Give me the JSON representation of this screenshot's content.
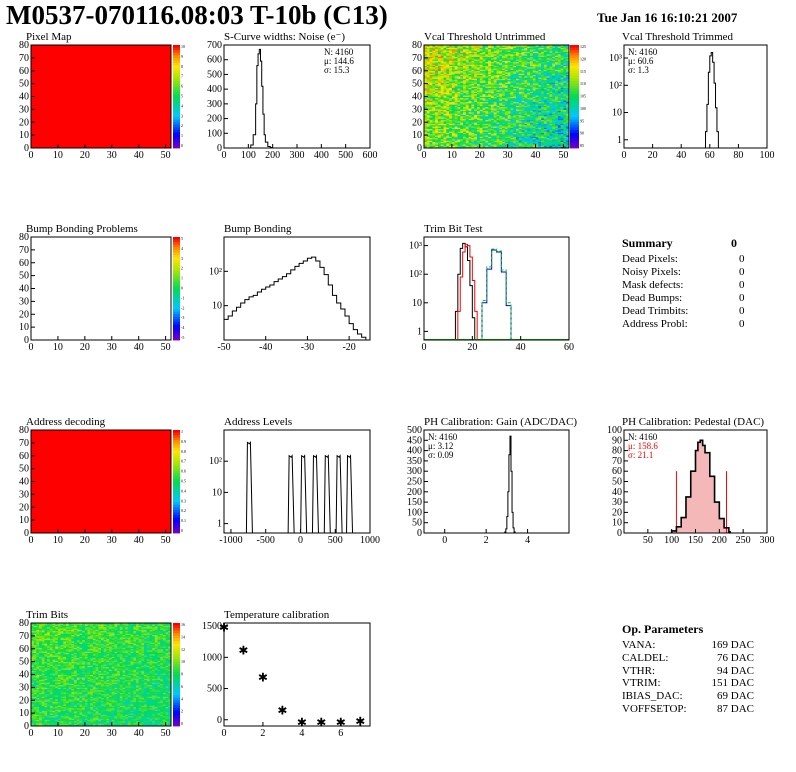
{
  "header": {
    "title": "M0537-070116.08:03 T-10b (C13)",
    "date": "Tue Jan 16 16:10:21 2007"
  },
  "summary": {
    "title": "Summary",
    "total": "0",
    "rows": [
      {
        "label": "Dead Pixels:",
        "value": "0"
      },
      {
        "label": "Noisy Pixels:",
        "value": "0"
      },
      {
        "label": "Mask defects:",
        "value": "0"
      },
      {
        "label": "Dead Bumps:",
        "value": "0"
      },
      {
        "label": "Dead Trimbits:",
        "value": "0"
      },
      {
        "label": "Address Probl:",
        "value": "0"
      }
    ]
  },
  "op_params": {
    "title": "Op. Parameters",
    "rows": [
      {
        "label": "VANA:",
        "value": "169 DAC"
      },
      {
        "label": "CALDEL:",
        "value": "76 DAC"
      },
      {
        "label": "VTHR:",
        "value": "94 DAC"
      },
      {
        "label": "VTRIM:",
        "value": "151 DAC"
      },
      {
        "label": "IBIAS_DAC:",
        "value": "69 DAC"
      },
      {
        "label": "VOFFSETOP:",
        "value": "87 DAC"
      }
    ]
  },
  "chart_data": [
    {
      "id": "pixel_map",
      "type": "heatmap",
      "title": "Pixel Map",
      "xlim": [
        0,
        52
      ],
      "ylim": [
        0,
        80
      ],
      "xticks": [
        0,
        10,
        20,
        30,
        40,
        50
      ],
      "yticks": [
        0,
        10,
        20,
        30,
        40,
        50,
        60,
        70,
        80
      ],
      "fill": "uniform",
      "fill_color": "#ff0000",
      "zticks": [
        "10",
        "9",
        "8",
        "7",
        "6",
        "5",
        "4",
        "3",
        "2",
        "1",
        "0"
      ]
    },
    {
      "id": "scurve_widths",
      "type": "bar",
      "title": "S-Curve widths: Noise (e⁻)",
      "xlim": [
        0,
        600
      ],
      "ylim": [
        0,
        700
      ],
      "xticks": [
        0,
        100,
        200,
        300,
        400,
        500,
        600
      ],
      "yticks": [
        0,
        100,
        200,
        300,
        400,
        500,
        600,
        700
      ],
      "stats": [
        "N: 4160",
        "μ: 144.6",
        "σ: 15.3"
      ],
      "x": [
        100,
        110,
        120,
        130,
        135,
        140,
        145,
        150,
        155,
        160,
        165,
        170,
        180,
        190,
        200
      ],
      "values": [
        0,
        20,
        90,
        300,
        560,
        640,
        670,
        590,
        420,
        230,
        90,
        40,
        10,
        3,
        0
      ]
    },
    {
      "id": "vcal_untrimmed",
      "type": "heatmap",
      "title": "Vcal Threshold Untrimmed",
      "xlim": [
        0,
        52
      ],
      "ylim": [
        0,
        80
      ],
      "xticks": [
        0,
        10,
        20,
        30,
        40,
        50
      ],
      "yticks": [
        0,
        10,
        20,
        30,
        40,
        50,
        60,
        70,
        80
      ],
      "fill": "gradient_random",
      "zticks": [
        "125",
        "120",
        "115",
        "110",
        "105",
        "100",
        "95",
        "90",
        "85"
      ]
    },
    {
      "id": "vcal_trimmed",
      "type": "bar",
      "title": "Vcal Threshold Trimmed",
      "xlim": [
        0,
        100
      ],
      "log_y": true,
      "ylim": [
        0.5,
        3000
      ],
      "xticks": [
        0,
        20,
        40,
        60,
        80,
        100
      ],
      "yticks": [
        {
          "v": 1,
          "t": "1"
        },
        {
          "v": 10,
          "t": "10"
        },
        {
          "v": 100,
          "t": "10²"
        },
        {
          "v": 1000,
          "t": "10³"
        }
      ],
      "stats": [
        "N: 4160",
        "μ: 60.6",
        "σ: 1.3"
      ],
      "x": [
        56,
        57,
        58,
        59,
        60,
        61,
        62,
        63,
        64,
        65,
        66
      ],
      "values": [
        0,
        2,
        20,
        300,
        1200,
        1600,
        700,
        120,
        15,
        2,
        0
      ]
    },
    {
      "id": "bump_problems",
      "type": "heatmap",
      "title": "Bump Bonding Problems",
      "xlim": [
        0,
        52
      ],
      "ylim": [
        0,
        80
      ],
      "xticks": [
        0,
        10,
        20,
        30,
        40,
        50
      ],
      "yticks": [
        0,
        10,
        20,
        30,
        40,
        50,
        60,
        70,
        80
      ],
      "fill": "empty",
      "zticks": [
        "5",
        "4",
        "3",
        "2",
        "1",
        "0",
        "-1",
        "-2",
        "-3",
        "-4",
        "-5"
      ]
    },
    {
      "id": "bump_bonding",
      "type": "bar",
      "title": "Bump Bonding",
      "xlim": [
        -50,
        -15
      ],
      "log_y": true,
      "ylim": [
        1,
        1000
      ],
      "xticks": [
        -50,
        -40,
        -30,
        -20
      ],
      "yticks": [
        {
          "v": 10,
          "t": "10"
        },
        {
          "v": 100,
          "t": "10²"
        }
      ],
      "x": [
        -50,
        -49,
        -48,
        -47,
        -46,
        -45,
        -44,
        -43,
        -42,
        -41,
        -40,
        -39,
        -38,
        -37,
        -36,
        -35,
        -34,
        -33,
        -32,
        -31,
        -30,
        -29,
        -28,
        -27,
        -26,
        -25,
        -24,
        -23,
        -22,
        -21,
        -20,
        -19,
        -18,
        -17,
        -16
      ],
      "values": [
        4,
        5,
        7,
        9,
        12,
        15,
        18,
        20,
        25,
        30,
        35,
        40,
        50,
        60,
        70,
        85,
        110,
        140,
        170,
        200,
        240,
        260,
        200,
        130,
        80,
        40,
        20,
        12,
        8,
        5,
        3,
        2,
        1.5,
        1.2,
        1
      ]
    },
    {
      "id": "trim_bit_test",
      "type": "line",
      "title": "Trim Bit Test",
      "xlim": [
        0,
        60
      ],
      "log_y": true,
      "ylim": [
        0.5,
        2000
      ],
      "xticks": [
        0,
        20,
        40,
        60
      ],
      "yticks": [
        {
          "v": 1,
          "t": "1"
        },
        {
          "v": 10,
          "t": "10"
        },
        {
          "v": 100,
          "t": "10²"
        },
        {
          "v": 1000,
          "t": "10³"
        }
      ],
      "series": [
        {
          "color": "#000000",
          "x": [
            12,
            13,
            14,
            15,
            16,
            17,
            18,
            19,
            20,
            21
          ],
          "values": [
            0.5,
            5,
            100,
            800,
            1200,
            900,
            300,
            40,
            3,
            0.5
          ]
        },
        {
          "color": "#ff0000",
          "x": [
            13,
            14,
            15,
            16,
            17,
            18,
            19,
            20,
            21,
            22
          ],
          "values": [
            0.5,
            5,
            80,
            600,
            1100,
            1000,
            400,
            60,
            5,
            0.5
          ]
        },
        {
          "color": "#0000ff",
          "x": [
            22,
            24,
            26,
            28,
            30,
            32,
            34,
            36
          ],
          "values": [
            0.5,
            10,
            150,
            700,
            600,
            120,
            8,
            0.5
          ]
        },
        {
          "color": "#00cc00",
          "dashed": true,
          "x": [
            22,
            24,
            26,
            28,
            30,
            32,
            34,
            36
          ],
          "values": [
            0.5,
            12,
            180,
            750,
            650,
            140,
            10,
            0.5
          ]
        }
      ]
    },
    {
      "id": "address_decoding",
      "type": "heatmap",
      "title": "Address decoding",
      "xlim": [
        0,
        52
      ],
      "ylim": [
        0,
        80
      ],
      "xticks": [
        0,
        10,
        20,
        30,
        40,
        50
      ],
      "yticks": [
        0,
        10,
        20,
        30,
        40,
        50,
        60,
        70,
        80
      ],
      "fill": "uniform",
      "fill_color": "#ff0000",
      "zticks": [
        "1",
        "0.9",
        "0.8",
        "0.7",
        "0.6",
        "0.5",
        "0.4",
        "0.3",
        "0.2",
        "0.1",
        "0"
      ]
    },
    {
      "id": "address_levels",
      "type": "bar",
      "title": "Address Levels",
      "xlim": [
        -1100,
        1000
      ],
      "log_y": true,
      "ylim": [
        0.5,
        1000
      ],
      "xticks": [
        -1000,
        -500,
        0,
        500,
        1000
      ],
      "yticks": [
        {
          "v": 1,
          "t": "1"
        },
        {
          "v": 10,
          "t": "10"
        },
        {
          "v": 100,
          "t": "10²"
        }
      ],
      "peaks": [
        {
          "x": -720,
          "h": 400
        },
        {
          "x": -120,
          "h": 150
        },
        {
          "x": 60,
          "h": 150
        },
        {
          "x": 230,
          "h": 150
        },
        {
          "x": 400,
          "h": 150
        },
        {
          "x": 570,
          "h": 150
        },
        {
          "x": 720,
          "h": 150
        }
      ]
    },
    {
      "id": "ph_gain",
      "type": "bar",
      "title": "PH Calibration: Gain (ADC/DAC)",
      "xlim": [
        -1,
        6
      ],
      "ylim": [
        0,
        500
      ],
      "xticks": [
        0,
        2,
        4
      ],
      "yticks": [
        0,
        50,
        100,
        150,
        200,
        250,
        300,
        350,
        400,
        450,
        500
      ],
      "stats": [
        "N: 4160",
        "μ: 3.12",
        "σ: 0.09"
      ],
      "x": [
        2.85,
        2.9,
        2.95,
        3.0,
        3.05,
        3.1,
        3.15,
        3.2,
        3.25,
        3.3,
        3.35,
        3.4
      ],
      "values": [
        0,
        5,
        20,
        80,
        200,
        380,
        470,
        300,
        100,
        25,
        5,
        0
      ]
    },
    {
      "id": "ph_pedestal",
      "type": "bar",
      "title": "PH Calibration: Pedestal (DAC)",
      "xlim": [
        0,
        300
      ],
      "ylim": [
        0,
        100
      ],
      "xticks": [
        50,
        100,
        150,
        200,
        250,
        300
      ],
      "yticks": [
        0,
        10,
        20,
        30,
        40,
        50,
        60,
        70,
        80,
        90,
        100
      ],
      "stats": [
        "N: 4160",
        "μ: 158.6",
        "σ: 21.1"
      ],
      "fit_range": [
        110,
        215
      ],
      "x": [
        100,
        110,
        120,
        130,
        140,
        150,
        155,
        160,
        165,
        170,
        180,
        190,
        200,
        210,
        220
      ],
      "values": [
        2,
        6,
        15,
        35,
        60,
        80,
        88,
        90,
        85,
        78,
        55,
        30,
        14,
        5,
        1
      ]
    },
    {
      "id": "trim_bits",
      "type": "heatmap",
      "title": "Trim Bits",
      "xlim": [
        0,
        52
      ],
      "ylim": [
        0,
        80
      ],
      "xticks": [
        0,
        10,
        20,
        30,
        40,
        50
      ],
      "yticks": [
        0,
        10,
        20,
        30,
        40,
        50,
        60,
        70,
        80
      ],
      "fill": "mostly_green_random",
      "zticks": [
        "16",
        "14",
        "12",
        "10",
        "8",
        "6",
        "4",
        "2",
        "0"
      ]
    },
    {
      "id": "temperature_calibration",
      "type": "scatter",
      "title": "Temperature calibration",
      "xlim": [
        0,
        7.5
      ],
      "ylim": [
        -100,
        1550
      ],
      "xticks": [
        0,
        2,
        4,
        6
      ],
      "yticks": [
        0,
        500,
        1000,
        1500
      ],
      "x": [
        0,
        1,
        2,
        3,
        4,
        5,
        6,
        7
      ],
      "values": [
        1480,
        1110,
        680,
        150,
        -40,
        -40,
        -40,
        -30
      ]
    }
  ]
}
